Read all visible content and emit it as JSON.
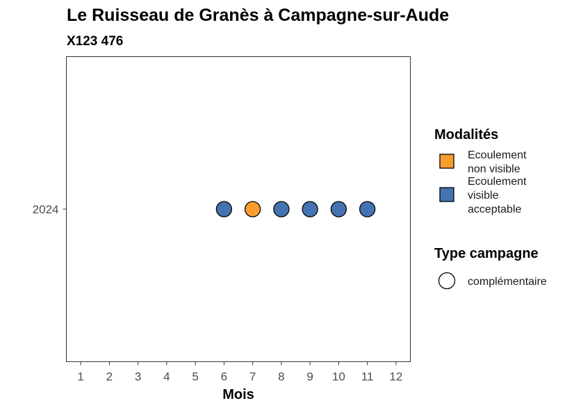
{
  "chart_data": {
    "type": "scatter",
    "title": "Le Ruisseau de Granès à Campagne-sur-Aude",
    "subtitle": "X123 476",
    "xlabel": "Mois",
    "ylabel": "",
    "x_ticks": [
      "1",
      "2",
      "3",
      "4",
      "5",
      "6",
      "7",
      "8",
      "9",
      "10",
      "11",
      "12"
    ],
    "xlim": [
      0.5,
      12.5
    ],
    "y_categories": [
      "2024"
    ],
    "grid": false,
    "legend_position": "right",
    "points": [
      {
        "x": 6,
        "y": "2024",
        "modalite": "Ecoulement visible acceptable",
        "campagne": "complémentaire"
      },
      {
        "x": 7,
        "y": "2024",
        "modalite": "Ecoulement non visible",
        "campagne": "complémentaire"
      },
      {
        "x": 8,
        "y": "2024",
        "modalite": "Ecoulement visible acceptable",
        "campagne": "complémentaire"
      },
      {
        "x": 9,
        "y": "2024",
        "modalite": "Ecoulement visible acceptable",
        "campagne": "complémentaire"
      },
      {
        "x": 10,
        "y": "2024",
        "modalite": "Ecoulement visible acceptable",
        "campagne": "complémentaire"
      },
      {
        "x": 11,
        "y": "2024",
        "modalite": "Ecoulement visible acceptable",
        "campagne": "complémentaire"
      }
    ],
    "legend_modalites": {
      "title": "Modalités",
      "items": [
        {
          "lines": [
            "Ecoulement",
            "non visible"
          ],
          "key": "Ecoulement non visible",
          "color": "#f99d2f"
        },
        {
          "lines": [
            "Ecoulement",
            "visible",
            "acceptable"
          ],
          "key": "Ecoulement visible acceptable",
          "color": "#4573b1"
        }
      ]
    },
    "legend_campagne": {
      "title": "Type campagne",
      "items": [
        {
          "label": "complémentaire",
          "shape": "circle"
        }
      ]
    }
  }
}
